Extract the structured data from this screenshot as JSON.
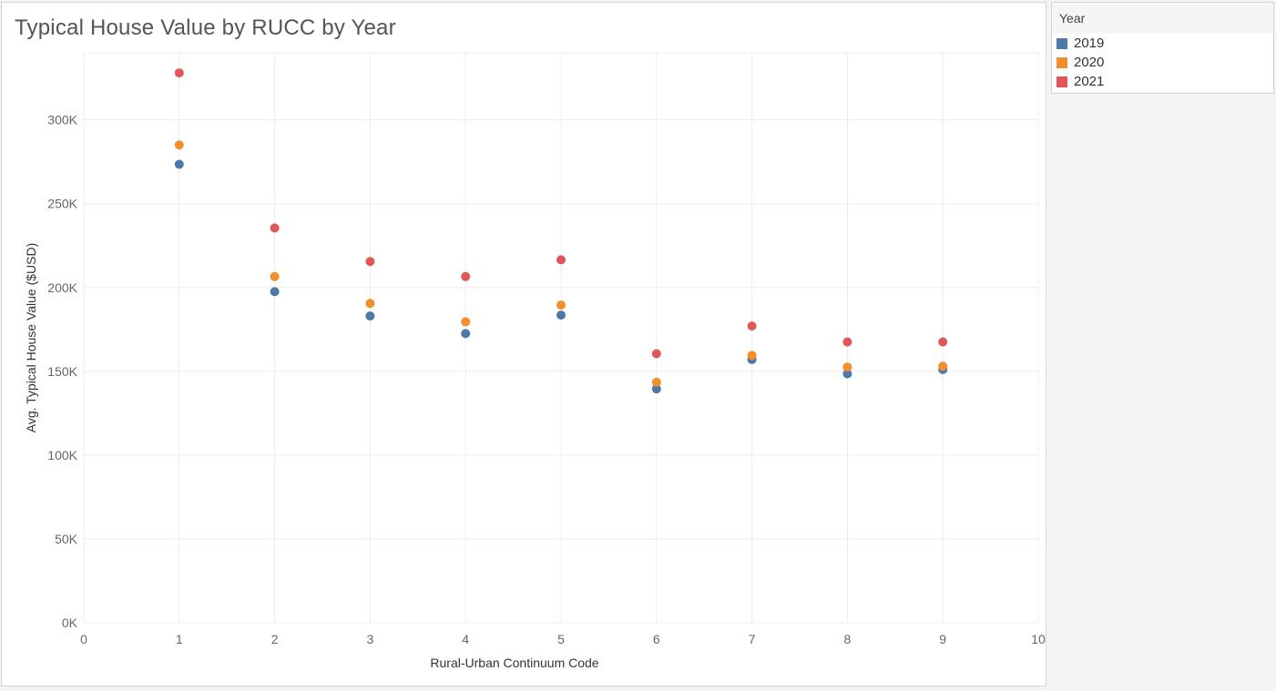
{
  "chart_data": {
    "type": "scatter",
    "title": "Typical House Value by RUCC by Year",
    "xlabel": "Rural-Urban Continuum Code",
    "ylabel": "Avg. Typical House Value ($USD)",
    "xlim": [
      0,
      10
    ],
    "ylim": [
      0,
      340000
    ],
    "x_ticks": [
      0,
      1,
      2,
      3,
      4,
      5,
      6,
      7,
      8,
      9,
      10
    ],
    "x_tick_labels": [
      "0",
      "1",
      "2",
      "3",
      "4",
      "5",
      "6",
      "7",
      "8",
      "9",
      "10"
    ],
    "y_ticks": [
      0,
      50000,
      100000,
      150000,
      200000,
      250000,
      300000
    ],
    "y_tick_labels": [
      "0K",
      "50K",
      "100K",
      "150K",
      "200K",
      "250K",
      "300K"
    ],
    "grid": true,
    "legend": {
      "title": "Year",
      "placement": "right"
    },
    "series": [
      {
        "name": "2019",
        "color": "#4e79a7",
        "x": [
          1,
          2,
          3,
          4,
          5,
          6,
          7,
          8,
          9
        ],
        "y": [
          273500,
          197500,
          183000,
          172500,
          183500,
          139500,
          157000,
          148500,
          151000
        ]
      },
      {
        "name": "2020",
        "color": "#f28e2b",
        "x": [
          1,
          2,
          3,
          4,
          5,
          6,
          7,
          8,
          9
        ],
        "y": [
          285000,
          206500,
          190500,
          179500,
          189500,
          143500,
          159500,
          152500,
          153000
        ]
      },
      {
        "name": "2021",
        "color": "#e15759",
        "x": [
          1,
          2,
          3,
          4,
          5,
          6,
          7,
          8,
          9
        ],
        "y": [
          328000,
          235500,
          215500,
          206500,
          216500,
          160500,
          177000,
          167500,
          167500
        ]
      }
    ]
  }
}
